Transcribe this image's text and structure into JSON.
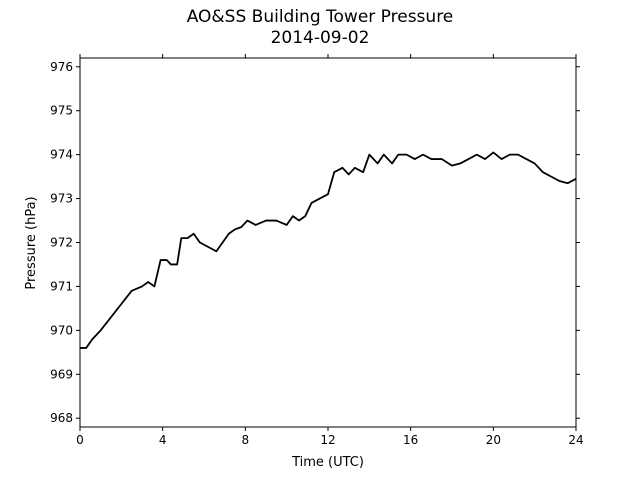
{
  "chart_data": {
    "type": "line",
    "title": "AO&SS Building Tower Pressure",
    "subtitle": "2014-09-02",
    "xlabel": "Time (UTC)",
    "ylabel": "Pressure (hPa)",
    "xlim": [
      0,
      24
    ],
    "ylim": [
      967.8,
      976.2
    ],
    "xticks": [
      0,
      4,
      8,
      12,
      16,
      20,
      24
    ],
    "yticks": [
      968,
      969,
      970,
      971,
      972,
      973,
      974,
      975,
      976
    ],
    "grid": false,
    "line_color": "#000000",
    "series": [
      {
        "x": [
          0,
          0.3,
          0.6,
          1.0,
          1.5,
          2.0,
          2.5,
          3.0,
          3.3,
          3.6,
          3.9,
          4.2,
          4.4,
          4.7,
          4.9,
          5.2,
          5.5,
          5.8,
          6.2,
          6.6,
          6.9,
          7.2,
          7.5,
          7.8,
          8.1,
          8.5,
          9.0,
          9.5,
          10.0,
          10.3,
          10.6,
          10.9,
          11.2,
          11.6,
          12.0,
          12.3,
          12.7,
          13.0,
          13.3,
          13.7,
          14.0,
          14.4,
          14.7,
          15.1,
          15.4,
          15.8,
          16.2,
          16.6,
          17.0,
          17.5,
          18.0,
          18.4,
          18.8,
          19.2,
          19.6,
          20.0,
          20.4,
          20.8,
          21.2,
          21.6,
          22.0,
          22.4,
          22.8,
          23.2,
          23.6,
          24.0
        ],
        "y": [
          969.6,
          969.6,
          969.8,
          970.0,
          970.3,
          970.6,
          970.9,
          971.0,
          971.1,
          971.0,
          971.6,
          971.6,
          971.5,
          971.5,
          972.1,
          972.1,
          972.2,
          972.0,
          971.9,
          971.8,
          972.0,
          972.2,
          972.3,
          972.35,
          972.5,
          972.4,
          972.5,
          972.5,
          972.4,
          972.6,
          972.5,
          972.6,
          972.9,
          973.0,
          973.1,
          973.6,
          973.7,
          973.55,
          973.7,
          973.6,
          974.0,
          973.8,
          974.0,
          973.8,
          974.0,
          974.0,
          973.9,
          974.0,
          973.9,
          973.9,
          973.75,
          973.8,
          973.9,
          974.0,
          973.9,
          974.05,
          973.9,
          974.0,
          974.0,
          973.9,
          973.8,
          973.6,
          973.5,
          973.4,
          973.35,
          973.45
        ]
      }
    ]
  }
}
